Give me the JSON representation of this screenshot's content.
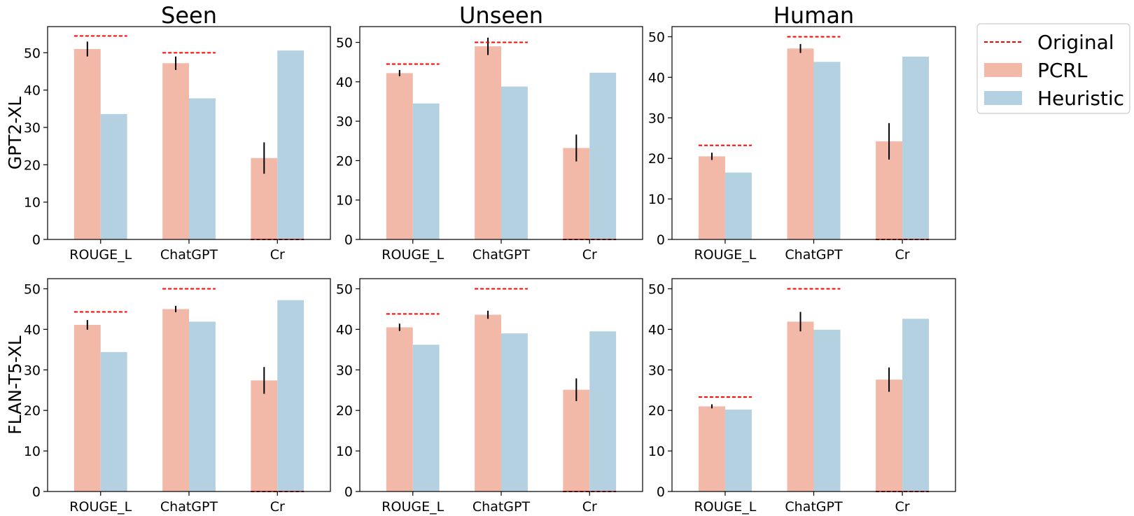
{
  "colors": {
    "pcrl": "#f2b9a8",
    "heuristic": "#b3d1e1",
    "original": "#ff0000",
    "error": "#000000",
    "axis": "#000000"
  },
  "legend": {
    "placement": "upper right, outside plots",
    "items": [
      {
        "key": "original",
        "label": "Original",
        "style": "dashed-line"
      },
      {
        "key": "pcrl",
        "label": "PCRL",
        "style": "patch"
      },
      {
        "key": "heuristic",
        "label": "Heuristic",
        "style": "patch"
      }
    ]
  },
  "column_titles": [
    "Seen",
    "Unseen",
    "Human"
  ],
  "row_labels": [
    "GPT2-XL",
    "FLAN-T5-XL"
  ],
  "chart_data": [
    {
      "type": "bar",
      "row": 0,
      "col": 0,
      "title": "Seen",
      "ylabel": "GPT2-XL",
      "categories": [
        "ROUGE_L",
        "ChatGPT",
        "Cr"
      ],
      "ylim": [
        0,
        57
      ],
      "yticks": [
        0,
        10,
        20,
        30,
        40,
        50
      ],
      "series": [
        {
          "name": "PCRL",
          "values": [
            51,
            47.2,
            21.8
          ],
          "errors": [
            2,
            1.8,
            4.2
          ]
        },
        {
          "name": "Heuristic",
          "values": [
            33.6,
            37.8,
            50.6
          ]
        }
      ],
      "original": [
        54.5,
        50,
        0
      ]
    },
    {
      "type": "bar",
      "row": 0,
      "col": 1,
      "title": "Unseen",
      "categories": [
        "ROUGE_L",
        "ChatGPT",
        "Cr"
      ],
      "ylim": [
        0,
        54
      ],
      "yticks": [
        0,
        10,
        20,
        30,
        40,
        50
      ],
      "series": [
        {
          "name": "PCRL",
          "values": [
            42.2,
            49,
            23.2
          ],
          "errors": [
            0.8,
            2.2,
            3.4
          ]
        },
        {
          "name": "Heuristic",
          "values": [
            34.5,
            38.8,
            42.3
          ]
        }
      ],
      "original": [
        44.5,
        50,
        0
      ]
    },
    {
      "type": "bar",
      "row": 0,
      "col": 2,
      "title": "Human",
      "categories": [
        "ROUGE_L",
        "ChatGPT",
        "Cr"
      ],
      "ylim": [
        0,
        52.5
      ],
      "yticks": [
        0,
        10,
        20,
        30,
        40,
        50
      ],
      "series": [
        {
          "name": "PCRL",
          "values": [
            20.5,
            47.1,
            24.2
          ],
          "errors": [
            0.9,
            1.1,
            4.5
          ]
        },
        {
          "name": "Heuristic",
          "values": [
            16.5,
            43.8,
            45.1
          ]
        }
      ],
      "original": [
        23.2,
        50,
        0
      ]
    },
    {
      "type": "bar",
      "row": 1,
      "col": 0,
      "ylabel": "FLAN-T5-XL",
      "categories": [
        "ROUGE_L",
        "ChatGPT",
        "Cr"
      ],
      "ylim": [
        0,
        52.5
      ],
      "yticks": [
        0,
        10,
        20,
        30,
        40,
        50
      ],
      "series": [
        {
          "name": "PCRL",
          "values": [
            41.1,
            45,
            27.4
          ],
          "errors": [
            1.2,
            0.8,
            3.3
          ]
        },
        {
          "name": "Heuristic",
          "values": [
            34.4,
            41.9,
            47.2
          ]
        }
      ],
      "original": [
        44.3,
        50,
        0
      ]
    },
    {
      "type": "bar",
      "row": 1,
      "col": 1,
      "categories": [
        "ROUGE_L",
        "ChatGPT",
        "Cr"
      ],
      "ylim": [
        0,
        52.5
      ],
      "yticks": [
        0,
        10,
        20,
        30,
        40,
        50
      ],
      "series": [
        {
          "name": "PCRL",
          "values": [
            40.5,
            43.6,
            25.1
          ],
          "errors": [
            0.9,
            1,
            2.8
          ]
        },
        {
          "name": "Heuristic",
          "values": [
            36.2,
            39,
            39.5
          ]
        }
      ],
      "original": [
        43.8,
        50,
        0
      ]
    },
    {
      "type": "bar",
      "row": 1,
      "col": 2,
      "categories": [
        "ROUGE_L",
        "ChatGPT",
        "Cr"
      ],
      "ylim": [
        0,
        52.5
      ],
      "yticks": [
        0,
        10,
        20,
        30,
        40,
        50
      ],
      "series": [
        {
          "name": "PCRL",
          "values": [
            21,
            41.9,
            27.6
          ],
          "errors": [
            0.5,
            2.4,
            3
          ]
        },
        {
          "name": "Heuristic",
          "values": [
            20.2,
            39.9,
            42.6
          ]
        }
      ],
      "original": [
        23.3,
        50,
        0
      ]
    }
  ]
}
